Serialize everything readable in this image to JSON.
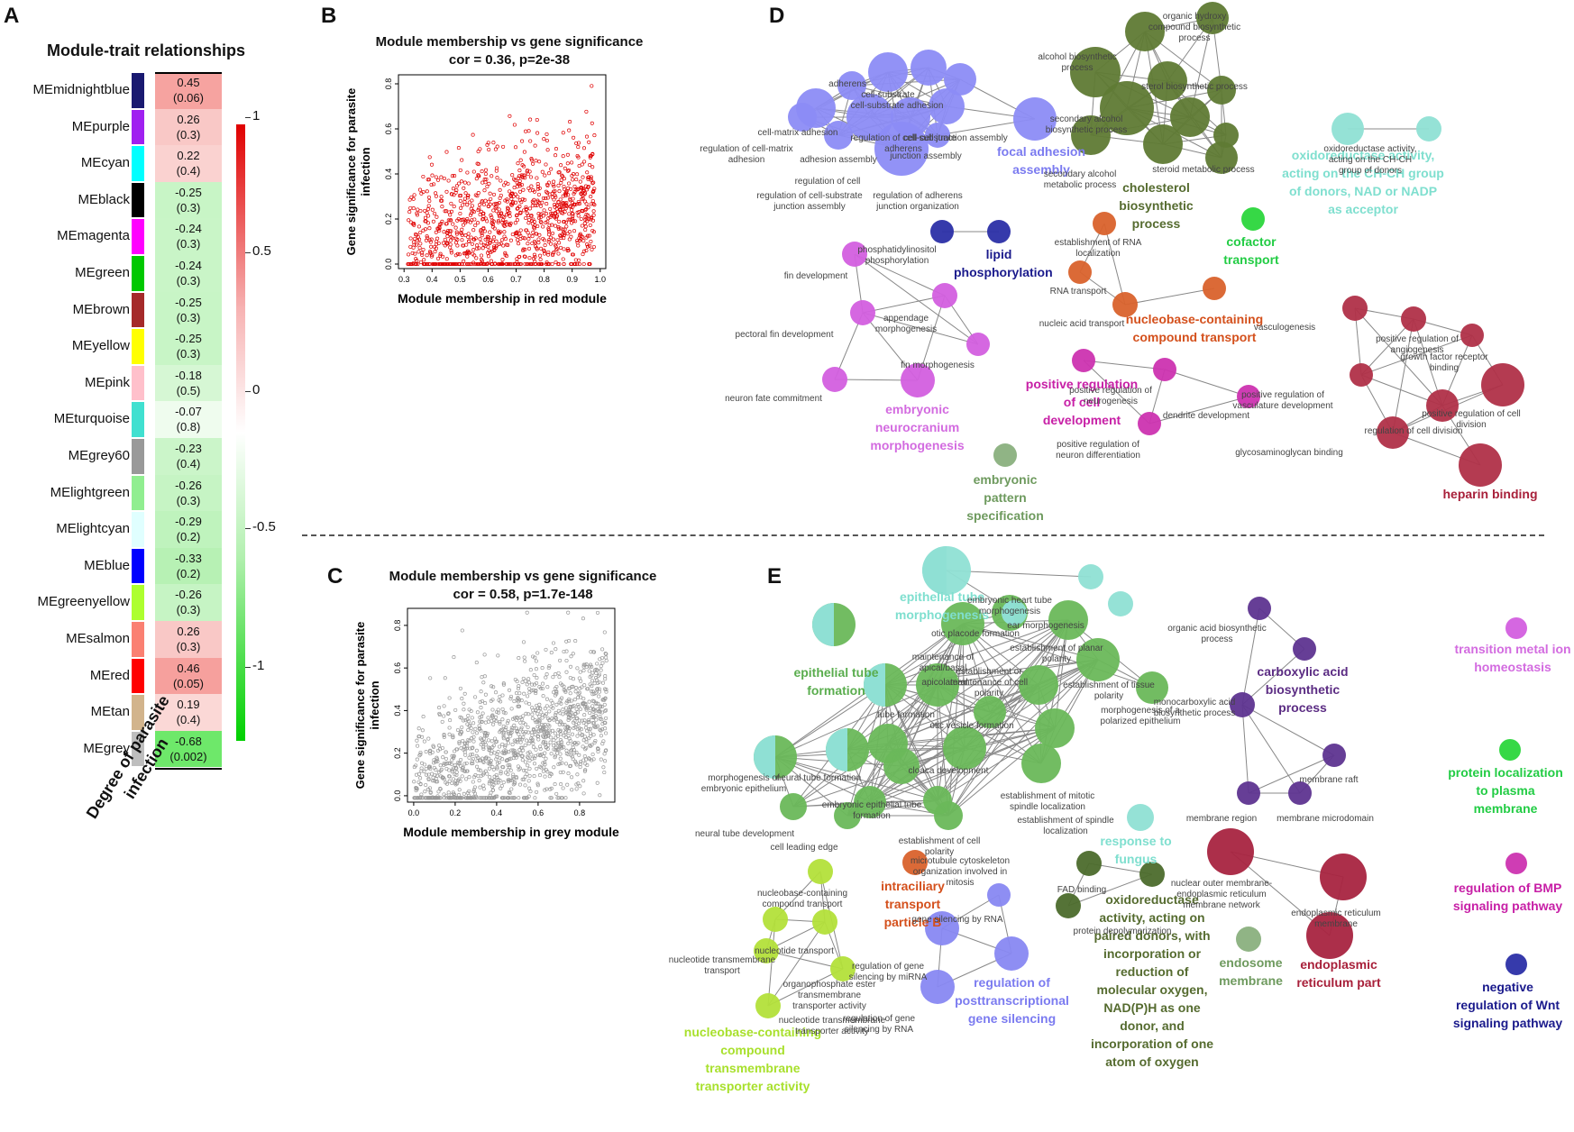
{
  "panels": {
    "a": "A",
    "b": "B",
    "c": "C",
    "d": "D",
    "e": "E"
  },
  "heatmap": {
    "title": "Module-trait relationships",
    "trait_label_line1": "Degree of parasite",
    "trait_label_line2": "infection",
    "rows": [
      {
        "module": "MEmidnightblue",
        "color": "#191970",
        "corr": "0.45",
        "p": "(0.06)",
        "fill": "#f6a3a0"
      },
      {
        "module": "MEpurple",
        "color": "#a020f0",
        "corr": "0.26",
        "p": "(0.3)",
        "fill": "#f9c8c6"
      },
      {
        "module": "MEcyan",
        "color": "#00ffff",
        "corr": "0.22",
        "p": "(0.4)",
        "fill": "#fad2d0"
      },
      {
        "module": "MEblack",
        "color": "#000000",
        "corr": "-0.25",
        "p": "(0.3)",
        "fill": "#c8f5c6"
      },
      {
        "module": "MEmagenta",
        "color": "#ff00ff",
        "corr": "-0.24",
        "p": "(0.3)",
        "fill": "#c9f5c7"
      },
      {
        "module": "MEgreen",
        "color": "#00c800",
        "corr": "-0.24",
        "p": "(0.3)",
        "fill": "#c9f5c7"
      },
      {
        "module": "MEbrown",
        "color": "#a52a2a",
        "corr": "-0.25",
        "p": "(0.3)",
        "fill": "#c8f5c6"
      },
      {
        "module": "MEyellow",
        "color": "#ffff00",
        "corr": "-0.25",
        "p": "(0.3)",
        "fill": "#c8f5c6"
      },
      {
        "module": "MEpink",
        "color": "#ffc0cb",
        "corr": "-0.18",
        "p": "(0.5)",
        "fill": "#d6f7d4"
      },
      {
        "module": "MEturquoise",
        "color": "#40e0d0",
        "corr": "-0.07",
        "p": "(0.8)",
        "fill": "#effcee"
      },
      {
        "module": "MEgrey60",
        "color": "#999999",
        "corr": "-0.23",
        "p": "(0.4)",
        "fill": "#cbf5c9"
      },
      {
        "module": "MElightgreen",
        "color": "#90ee90",
        "corr": "-0.26",
        "p": "(0.3)",
        "fill": "#c6f4c4"
      },
      {
        "module": "MElightcyan",
        "color": "#e0ffff",
        "corr": "-0.29",
        "p": "(0.2)",
        "fill": "#bff3bd"
      },
      {
        "module": "MEblue",
        "color": "#0000ff",
        "corr": "-0.33",
        "p": "(0.2)",
        "fill": "#b7f1b4"
      },
      {
        "module": "MEgreenyellow",
        "color": "#adff2f",
        "corr": "-0.26",
        "p": "(0.3)",
        "fill": "#c6f4c4"
      },
      {
        "module": "MEsalmon",
        "color": "#fa8072",
        "corr": "0.26",
        "p": "(0.3)",
        "fill": "#f9c8c6"
      },
      {
        "module": "MEred",
        "color": "#ff0000",
        "corr": "0.46",
        "p": "(0.05)",
        "fill": "#f6a09d"
      },
      {
        "module": "MEtan",
        "color": "#d2b48c",
        "corr": "0.19",
        "p": "(0.4)",
        "fill": "#fbd8d6"
      },
      {
        "module": "MEgrey",
        "color": "#bebebe",
        "corr": "-0.68",
        "p": "(0.002)",
        "fill": "#6ee86a"
      }
    ],
    "colorbar_ticks": [
      "1",
      "0.5",
      "0",
      "-0.5",
      "-1"
    ]
  },
  "chart_data": [
    {
      "type": "scatter",
      "title": "Module membership vs gene significance",
      "subtitle": "cor = 0.36, p=2e-38",
      "xlabel": "Module membership in red module",
      "ylabel_line1": "Gene significance for parasite",
      "ylabel_line2": "infection",
      "xticks": [
        "0.3",
        "0.4",
        "0.5",
        "0.6",
        "0.7",
        "0.8",
        "0.9",
        "1.0"
      ],
      "yticks": [
        "0.0",
        "0.2",
        "0.4",
        "0.6",
        "0.8"
      ],
      "xlim": [
        0.28,
        1.02
      ],
      "ylim": [
        -0.02,
        0.84
      ],
      "color": "#e00000",
      "n_points": 1100,
      "cor": 0.36
    },
    {
      "type": "scatter",
      "title": "Module membership vs gene significance",
      "subtitle": "cor = 0.58, p=1.7e-148",
      "xlabel": "Module membership in grey module",
      "ylabel_line1": "Gene significance for parasite",
      "ylabel_line2": "infection",
      "xticks": [
        "0.0",
        "0.2",
        "0.4",
        "0.6",
        "0.8"
      ],
      "yticks": [
        "0.0",
        "0.2",
        "0.4",
        "0.6",
        "0.8"
      ],
      "xlim": [
        -0.03,
        0.97
      ],
      "ylim": [
        -0.03,
        0.88
      ],
      "color": "#999999",
      "n_points": 1300,
      "cor": 0.58
    }
  ],
  "network_d": {
    "node_labels": [
      "adherens",
      "cell-substrate",
      "cell-matrix adhesion",
      "cell-substrate adhesion",
      "cell-cell junction assembly",
      "regulation of cell-matrix adhesion",
      "regulation of cell-substrate adherens",
      "junction assembly",
      "adhesion assembly",
      "regulation of cell-substrate junction assembly",
      "regulation of adherens junction organization",
      "regulation of cell",
      "alcohol biosynthetic process",
      "organic hydroxy compound biosynthetic process",
      "secondary alcohol biosynthetic process",
      "sterol biosynthetic process",
      "secondary alcohol metabolic process",
      "steroid metabolic process",
      "oxidoreductase activity, acting on the CH-CH group of donors",
      "phosphatidylinositol phosphorylation",
      "establishment of RNA localization",
      "RNA transport",
      "nucleic acid transport",
      "fin development",
      "appendage morphogenesis",
      "pectoral fin development",
      "fin morphogenesis",
      "neuron fate commitment",
      "positive regulation of neurogenesis",
      "dendrite development",
      "positive regulation of neuron differentiation",
      "vasculogenesis",
      "positive regulation of angiogenesis",
      "growth factor receptor binding",
      "positive regulation of vasculature development",
      "regulation of cell division",
      "positive regulation of cell division",
      "glycosaminoglycan binding"
    ],
    "terms": [
      {
        "text": "focal adhesion assembly",
        "color": "#7b7bf0"
      },
      {
        "text": "cholesterol biosynthetic process",
        "color": "#556b2f"
      },
      {
        "text": "oxidoreductase activity, acting on the CH-CH group of donors, NAD or NADP as acceptor",
        "color": "#7fdfcf"
      },
      {
        "text": "lipid phosphorylation",
        "color": "#1a1a8c"
      },
      {
        "text": "cofactor transport",
        "color": "#22cc44"
      },
      {
        "text": "nucleobase-containing compound transport",
        "color": "#d4501c"
      },
      {
        "text": "positive regulation of cell development",
        "color": "#c71fa6"
      },
      {
        "text": "embryonic neurocranium morphogenesis",
        "color": "#d36be0"
      },
      {
        "text": "embryonic pattern specification",
        "color": "#6e9a5e"
      },
      {
        "text": "heparin binding",
        "color": "#a8203a"
      }
    ]
  },
  "network_e": {
    "node_labels": [
      "embryonic heart tube morphogenesis",
      "ear morphogenesis",
      "otic placode formation",
      "establishment of planar polarity",
      "maintenance of apical/basal",
      "establishment or maintenance of cell polarity",
      "apicolateral",
      "tube formation",
      "otic vesicle formation",
      "morphogenesis of a polarized epithelium",
      "establishment of tissue polarity",
      "morphogenesis of embryonic epithelium",
      "neural tube formation",
      "cloaca development",
      "embryonic epithelial tube formation",
      "establishment of mitotic spindle localization",
      "establishment of spindle localization",
      "neural tube development",
      "cell leading edge",
      "establishment of cell polarity",
      "microtubule cytoskeleton organization involved in mitosis",
      "organic acid biosynthetic process",
      "monocarboxylic acid biosynthetic process",
      "membrane raft",
      "membrane region",
      "membrane microdomain",
      "nucleobase-containing compound transport",
      "nucleotide transport",
      "nucleotide transmembrane transport",
      "organophosphate ester transmembrane transporter activity",
      "nucleotide transmembrane transporter activity",
      "gene silencing by RNA",
      "regulation of gene silencing by miRNA",
      "regulation of gene silencing by RNA",
      "FAD binding",
      "protein depolymerization",
      "nuclear outer membrane-endoplasmic reticulum membrane network",
      "endoplasmic reticulum membrane"
    ],
    "terms": [
      {
        "text": "epithelial tube morphogenesis",
        "color": "#7fdfcf"
      },
      {
        "text": "epithelial tube formation",
        "color": "#5aad4e"
      },
      {
        "text": "carboxylic acid biosynthetic process",
        "color": "#5b2c83"
      },
      {
        "text": "transition metal ion homeostasis",
        "color": "#d36be0"
      },
      {
        "text": "protein localization to plasma membrane",
        "color": "#22cc44"
      },
      {
        "text": "regulation of BMP signaling pathway",
        "color": "#c71fa6"
      },
      {
        "text": "negative regulation of Wnt signaling pathway",
        "color": "#1a1a8c"
      },
      {
        "text": "response to fungus",
        "color": "#7fdfcf"
      },
      {
        "text": "intraciliary transport particle B",
        "color": "#d4501c"
      },
      {
        "text": "oxidoreductase activity, acting on paired donors, with incorporation or reduction of molecular oxygen, NAD(P)H as one donor, and incorporation of one atom of oxygen",
        "color": "#556b2f"
      },
      {
        "text": "endosome membrane",
        "color": "#6e9a5e"
      },
      {
        "text": "endoplasmic reticulum part",
        "color": "#a8203a"
      },
      {
        "text": "regulation of posttranscriptional gene silencing",
        "color": "#7b7bf0"
      },
      {
        "text": "nucleobase-containing compound transmembrane transporter activity",
        "color": "#a8e02c"
      }
    ]
  }
}
